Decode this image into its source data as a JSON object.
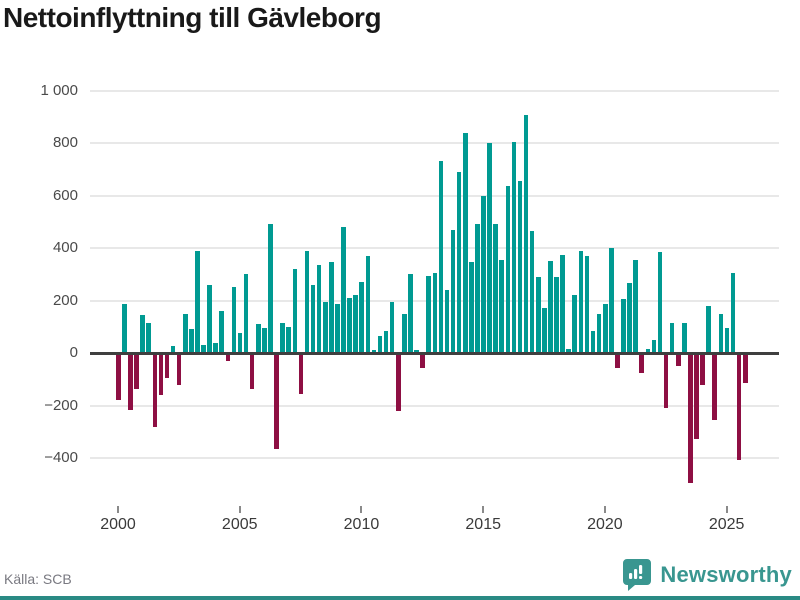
{
  "header": {
    "title": "Nettoinflyttning till Gävleborg"
  },
  "footer": {
    "source_label": "Källa: SCB",
    "brand": {
      "name": "Newsworthy",
      "icon": "newsworthy-speech-bubble-bar-chart-icon"
    }
  },
  "colors": {
    "positive_bar": "#009a92",
    "negative_bar": "#8e0f43",
    "grid": "#e8e8e8",
    "zero_line": "#3f3f3f",
    "brand_teal": "#399690",
    "bottom_strip": "#2a8a84"
  },
  "chart_data": {
    "type": "bar",
    "title": "Nettoinflyttning till Gävleborg",
    "ylabel": "",
    "xlabel": "",
    "grid": "horizontal",
    "legend": "none",
    "frequency": "quarterly",
    "start_quarter": "2000Q1",
    "end_quarter": "2025Q4",
    "y_ticks": [
      1000,
      800,
      600,
      400,
      200,
      0,
      -200,
      -400
    ],
    "y_tick_labels": [
      "1 000",
      "800",
      "600",
      "400",
      "200",
      "0",
      "−200",
      "−400"
    ],
    "x_tick_years": [
      2000,
      2005,
      2010,
      2015,
      2020,
      2025
    ],
    "x_tick_labels": [
      "2000",
      "2005",
      "2010",
      "2015",
      "2020",
      "2025"
    ],
    "ylim": [
      -520,
      1010
    ],
    "values": [
      -175,
      185,
      -210,
      -130,
      145,
      115,
      -275,
      -155,
      -90,
      25,
      -115,
      150,
      90,
      390,
      30,
      260,
      40,
      160,
      -25,
      250,
      75,
      300,
      -130,
      110,
      95,
      490,
      -360,
      115,
      100,
      320,
      -150,
      390,
      260,
      335,
      195,
      345,
      185,
      480,
      210,
      220,
      270,
      370,
      10,
      65,
      85,
      195,
      -215,
      150,
      300,
      10,
      -50,
      295,
      305,
      730,
      240,
      470,
      690,
      840,
      345,
      490,
      600,
      800,
      490,
      355,
      635,
      805,
      655,
      905,
      465,
      290,
      170,
      350,
      290,
      375,
      15,
      220,
      390,
      370,
      85,
      150,
      185,
      400,
      -50,
      205,
      265,
      355,
      -70,
      15,
      50,
      385,
      -205,
      115,
      -45,
      115,
      -490,
      -320,
      -115,
      180,
      -250,
      150,
      95,
      305,
      -400,
      -110
    ]
  }
}
